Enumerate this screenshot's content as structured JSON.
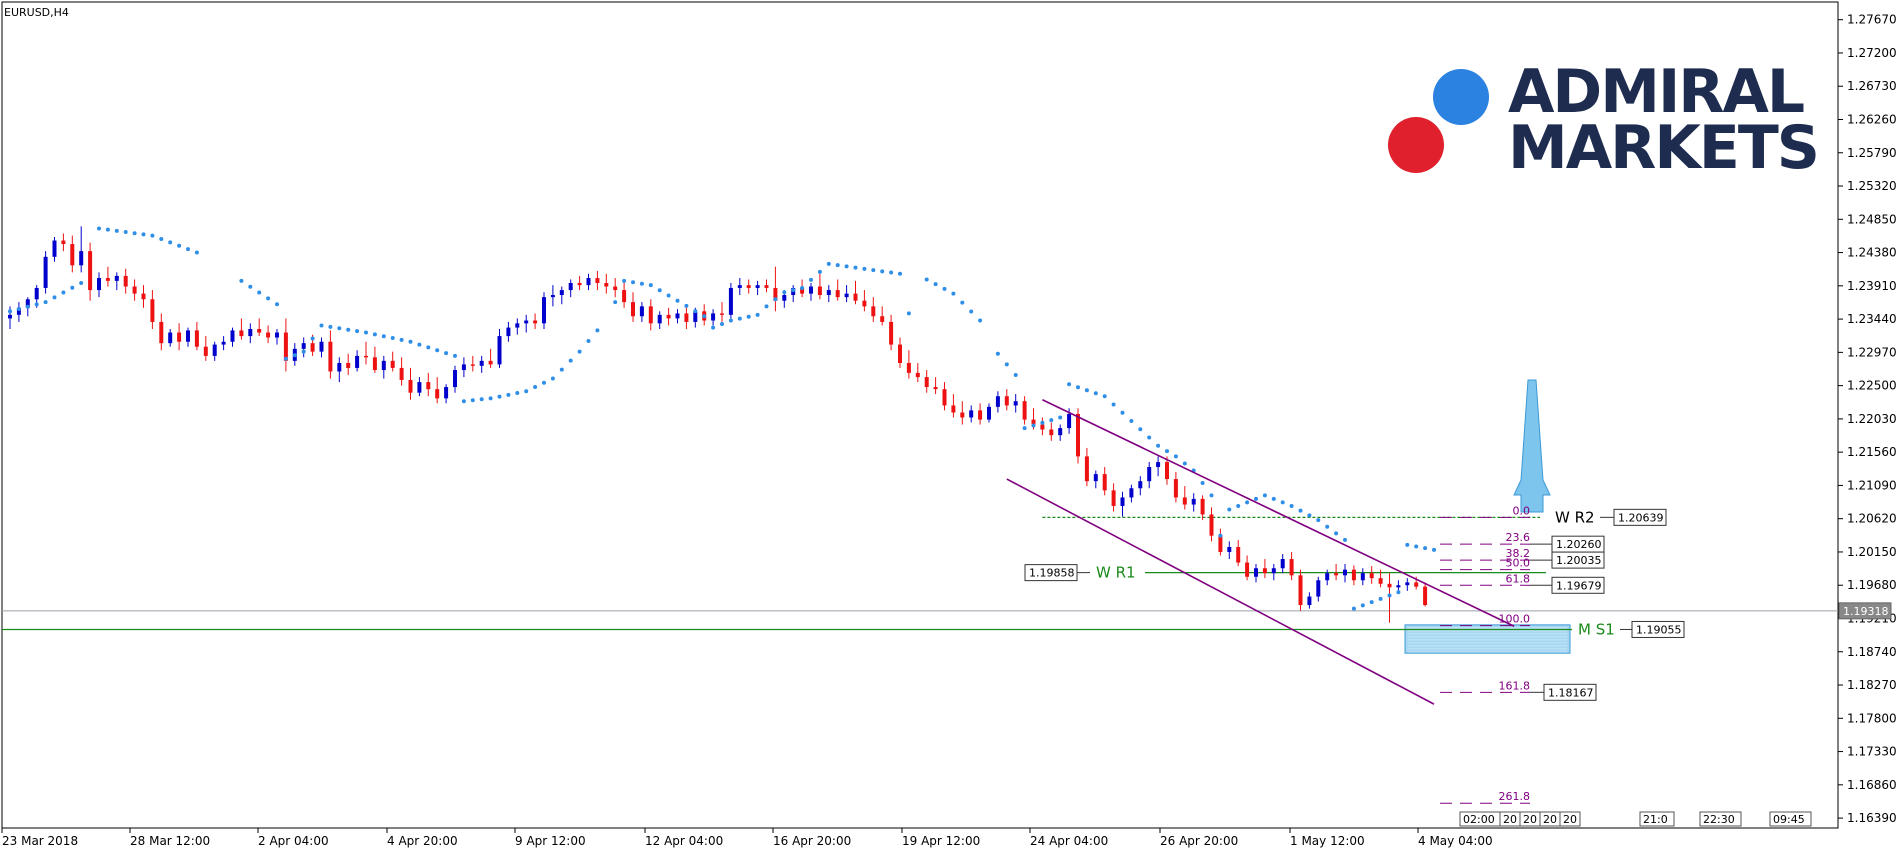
{
  "window": {
    "title": "EURUSD,H4"
  },
  "logo": {
    "line1": "ADMIRAL",
    "line2": "MARKETS"
  },
  "colors": {
    "bull": "#0000cc",
    "bear": "#ee1111",
    "sar": "#2f8fe8",
    "channel": "#800080",
    "pivot": "#1a8a1a",
    "fib": "#800080",
    "price_line": "#9aa0a6",
    "target_box": "#5eb6e8"
  },
  "chart_data": {
    "type": "candlestick",
    "symbol": "EURUSD",
    "timeframe": "H4",
    "ylim": [
      1.1625,
      1.2792
    ],
    "y_ticks": [
      "1.27670",
      "1.27200",
      "1.26730",
      "1.26260",
      "1.25790",
      "1.25320",
      "1.24850",
      "1.24380",
      "1.23910",
      "1.23440",
      "1.22970",
      "1.22500",
      "1.22030",
      "1.21560",
      "1.21090",
      "1.20620",
      "1.20150",
      "1.19680",
      "1.19210",
      "1.18740",
      "1.18270",
      "1.17800",
      "1.17330",
      "1.16860",
      "1.16390"
    ],
    "x_ticks": [
      "23 Mar 2018",
      "28 Mar 12:00",
      "2 Apr 04:00",
      "4 Apr 20:00",
      "9 Apr 12:00",
      "12 Apr 04:00",
      "16 Apr 20:00",
      "19 Apr 12:00",
      "24 Apr 04:00",
      "26 Apr 20:00",
      "1 May 12:00",
      "4 May 04:00"
    ],
    "current_price": "1.19318",
    "candles": [
      [
        1.2345,
        1.2362,
        1.233,
        1.235
      ],
      [
        1.235,
        1.2368,
        1.234,
        1.236
      ],
      [
        1.236,
        1.2375,
        1.2348,
        1.2372
      ],
      [
        1.2372,
        1.2392,
        1.236,
        1.2388
      ],
      [
        1.2388,
        1.244,
        1.238,
        1.2432
      ],
      [
        1.2432,
        1.246,
        1.2425,
        1.2455
      ],
      [
        1.2455,
        1.2465,
        1.244,
        1.245
      ],
      [
        1.245,
        1.2462,
        1.241,
        1.242
      ],
      [
        1.242,
        1.2475,
        1.241,
        1.244
      ],
      [
        1.244,
        1.2452,
        1.237,
        1.2385
      ],
      [
        1.2385,
        1.241,
        1.2375,
        1.2402
      ],
      [
        1.2402,
        1.2418,
        1.239,
        1.2398
      ],
      [
        1.2398,
        1.241,
        1.2385,
        1.2405
      ],
      [
        1.2405,
        1.2415,
        1.238,
        1.239
      ],
      [
        1.239,
        1.24,
        1.237,
        1.238
      ],
      [
        1.238,
        1.2392,
        1.236,
        1.2372
      ],
      [
        1.2372,
        1.2385,
        1.233,
        1.234
      ],
      [
        1.234,
        1.2352,
        1.23,
        1.231
      ],
      [
        1.231,
        1.233,
        1.2305,
        1.2325
      ],
      [
        1.2325,
        1.2338,
        1.23,
        1.2312
      ],
      [
        1.2312,
        1.2332,
        1.2305,
        1.2328
      ],
      [
        1.2328,
        1.234,
        1.23,
        1.2305
      ],
      [
        1.2305,
        1.232,
        1.2285,
        1.2292
      ],
      [
        1.2292,
        1.2312,
        1.2285,
        1.2308
      ],
      [
        1.2308,
        1.232,
        1.23,
        1.2312
      ],
      [
        1.2312,
        1.2332,
        1.2305,
        1.2328
      ],
      [
        1.2328,
        1.2345,
        1.2315,
        1.232
      ],
      [
        1.232,
        1.2338,
        1.231,
        1.233
      ],
      [
        1.233,
        1.2345,
        1.232,
        1.2325
      ],
      [
        1.2325,
        1.2335,
        1.231,
        1.2318
      ],
      [
        1.2318,
        1.233,
        1.2308,
        1.2325
      ],
      [
        1.2325,
        1.2345,
        1.227,
        1.2285
      ],
      [
        1.2285,
        1.231,
        1.2278,
        1.2302
      ],
      [
        1.2302,
        1.2318,
        1.229,
        1.231
      ],
      [
        1.231,
        1.2322,
        1.2292,
        1.2298
      ],
      [
        1.2298,
        1.2318,
        1.229,
        1.2312
      ],
      [
        1.2312,
        1.2328,
        1.226,
        1.227
      ],
      [
        1.227,
        1.229,
        1.2255,
        1.2282
      ],
      [
        1.2282,
        1.2295,
        1.2265,
        1.2275
      ],
      [
        1.2275,
        1.23,
        1.227,
        1.2292
      ],
      [
        1.2292,
        1.2312,
        1.228,
        1.229
      ],
      [
        1.229,
        1.2305,
        1.2268,
        1.2272
      ],
      [
        1.2272,
        1.2292,
        1.226,
        1.2285
      ],
      [
        1.2285,
        1.2298,
        1.227,
        1.2275
      ],
      [
        1.2275,
        1.229,
        1.225,
        1.2258
      ],
      [
        1.2258,
        1.2275,
        1.223,
        1.224
      ],
      [
        1.224,
        1.2262,
        1.2235,
        1.2255
      ],
      [
        1.2255,
        1.2268,
        1.2235,
        1.2245
      ],
      [
        1.2245,
        1.2262,
        1.2225,
        1.2232
      ],
      [
        1.2232,
        1.2252,
        1.2225,
        1.2248
      ],
      [
        1.2248,
        1.2278,
        1.224,
        1.2272
      ],
      [
        1.2272,
        1.229,
        1.2262,
        1.228
      ],
      [
        1.228,
        1.2292,
        1.227,
        1.2278
      ],
      [
        1.2278,
        1.2292,
        1.2268,
        1.2285
      ],
      [
        1.2285,
        1.2302,
        1.2275,
        1.228
      ],
      [
        1.228,
        1.233,
        1.2275,
        1.232
      ],
      [
        1.232,
        1.234,
        1.2312,
        1.2332
      ],
      [
        1.2332,
        1.2345,
        1.2322,
        1.2338
      ],
      [
        1.2338,
        1.235,
        1.2325,
        1.2342
      ],
      [
        1.2342,
        1.2352,
        1.233,
        1.2338
      ],
      [
        1.2338,
        1.2382,
        1.233,
        1.2375
      ],
      [
        1.2375,
        1.2392,
        1.2362,
        1.2378
      ],
      [
        1.2378,
        1.239,
        1.2365,
        1.2385
      ],
      [
        1.2385,
        1.24,
        1.2375,
        1.2395
      ],
      [
        1.2395,
        1.2405,
        1.2385,
        1.2392
      ],
      [
        1.2392,
        1.2408,
        1.2385,
        1.2402
      ],
      [
        1.2402,
        1.2412,
        1.2385,
        1.2395
      ],
      [
        1.2395,
        1.2408,
        1.238,
        1.239
      ],
      [
        1.239,
        1.2402,
        1.2375,
        1.2385
      ],
      [
        1.2385,
        1.2398,
        1.236,
        1.2368
      ],
      [
        1.2368,
        1.2382,
        1.234,
        1.2348
      ],
      [
        1.2348,
        1.2368,
        1.234,
        1.2362
      ],
      [
        1.2362,
        1.2372,
        1.2328,
        1.2338
      ],
      [
        1.2338,
        1.2355,
        1.233,
        1.235
      ],
      [
        1.235,
        1.236,
        1.2335,
        1.2345
      ],
      [
        1.2345,
        1.2358,
        1.2338,
        1.2352
      ],
      [
        1.2352,
        1.2362,
        1.233,
        1.234
      ],
      [
        1.234,
        1.236,
        1.2332,
        1.2355
      ],
      [
        1.2355,
        1.2365,
        1.2335,
        1.2342
      ],
      [
        1.2342,
        1.2358,
        1.2335,
        1.2352
      ],
      [
        1.2352,
        1.2368,
        1.234,
        1.235
      ],
      [
        1.235,
        1.2395,
        1.2345,
        1.2388
      ],
      [
        1.2388,
        1.2402,
        1.2378,
        1.2392
      ],
      [
        1.2392,
        1.24,
        1.238,
        1.2388
      ],
      [
        1.2388,
        1.2398,
        1.2378,
        1.2392
      ],
      [
        1.2392,
        1.24,
        1.2382,
        1.2388
      ],
      [
        1.2388,
        1.2418,
        1.2355,
        1.237
      ],
      [
        1.237,
        1.2385,
        1.236,
        1.2378
      ],
      [
        1.2378,
        1.2392,
        1.2368,
        1.2388
      ],
      [
        1.2388,
        1.24,
        1.2375,
        1.238
      ],
      [
        1.238,
        1.2395,
        1.237,
        1.239
      ],
      [
        1.239,
        1.2408,
        1.2372,
        1.2378
      ],
      [
        1.2378,
        1.2392,
        1.2368,
        1.2385
      ],
      [
        1.2385,
        1.24,
        1.237,
        1.2375
      ],
      [
        1.2375,
        1.2392,
        1.2368,
        1.238
      ],
      [
        1.238,
        1.2398,
        1.2365,
        1.237
      ],
      [
        1.237,
        1.2385,
        1.2355,
        1.2362
      ],
      [
        1.2362,
        1.2375,
        1.234,
        1.2348
      ],
      [
        1.2348,
        1.2362,
        1.2335,
        1.234
      ],
      [
        1.234,
        1.235,
        1.23,
        1.2308
      ],
      [
        1.2308,
        1.2318,
        1.2275,
        1.2282
      ],
      [
        1.2282,
        1.23,
        1.226,
        1.2268
      ],
      [
        1.2268,
        1.2282,
        1.2255,
        1.2262
      ],
      [
        1.2262,
        1.2272,
        1.224,
        1.2248
      ],
      [
        1.2248,
        1.2262,
        1.2238,
        1.2245
      ],
      [
        1.2245,
        1.2255,
        1.2215,
        1.2222
      ],
      [
        1.2222,
        1.2238,
        1.2205,
        1.2212
      ],
      [
        1.2212,
        1.2228,
        1.2195,
        1.2205
      ],
      [
        1.2205,
        1.2222,
        1.2198,
        1.2215
      ],
      [
        1.2215,
        1.2225,
        1.2195,
        1.2202
      ],
      [
        1.2202,
        1.2225,
        1.2198,
        1.222
      ],
      [
        1.222,
        1.2242,
        1.2212,
        1.2235
      ],
      [
        1.2235,
        1.2245,
        1.2215,
        1.2222
      ],
      [
        1.2222,
        1.2238,
        1.2212,
        1.2228
      ],
      [
        1.2228,
        1.2235,
        1.2195,
        1.2202
      ],
      [
        1.2202,
        1.2218,
        1.2188,
        1.2195
      ],
      [
        1.2195,
        1.2205,
        1.218,
        1.2188
      ],
      [
        1.2188,
        1.2198,
        1.2172,
        1.218
      ],
      [
        1.218,
        1.2195,
        1.2172,
        1.219
      ],
      [
        1.219,
        1.2218,
        1.2182,
        1.221
      ],
      [
        1.221,
        1.2218,
        1.214,
        1.215
      ],
      [
        1.215,
        1.2162,
        1.2108,
        1.2115
      ],
      [
        1.2115,
        1.213,
        1.2105,
        1.2125
      ],
      [
        1.2125,
        1.2135,
        1.2095,
        1.2102
      ],
      [
        1.2102,
        1.2112,
        1.2072,
        1.208
      ],
      [
        1.208,
        1.21,
        1.2065,
        1.2092
      ],
      [
        1.2092,
        1.211,
        1.2085,
        1.2105
      ],
      [
        1.2105,
        1.2122,
        1.2095,
        1.2115
      ],
      [
        1.2115,
        1.2142,
        1.2105,
        1.2135
      ],
      [
        1.2135,
        1.215,
        1.2122,
        1.2142
      ],
      [
        1.2142,
        1.215,
        1.211,
        1.2118
      ],
      [
        1.2118,
        1.2128,
        1.2085,
        1.2092
      ],
      [
        1.2092,
        1.2108,
        1.2075,
        1.2082
      ],
      [
        1.2082,
        1.2098,
        1.2072,
        1.209
      ],
      [
        1.209,
        1.2095,
        1.206,
        1.2068
      ],
      [
        1.2068,
        1.2078,
        1.203,
        1.2038
      ],
      [
        1.2038,
        1.2048,
        1.201,
        1.2015
      ],
      [
        1.2015,
        1.203,
        1.2005,
        1.2022
      ],
      [
        1.2022,
        1.2032,
        1.1995,
        1.2
      ],
      [
        1.2,
        1.201,
        1.1975,
        1.198
      ],
      [
        1.198,
        1.1998,
        1.1972,
        1.1992
      ],
      [
        1.1992,
        1.2005,
        1.1978,
        1.1985
      ],
      [
        1.1985,
        1.1998,
        1.1975,
        1.1992
      ],
      [
        1.1992,
        1.2012,
        1.1985,
        1.2005
      ],
      [
        1.2005,
        1.2015,
        1.1975,
        1.1982
      ],
      [
        1.1982,
        1.199,
        1.1932,
        1.194
      ],
      [
        1.194,
        1.1958,
        1.1935,
        1.1952
      ],
      [
        1.1952,
        1.198,
        1.1945,
        1.1975
      ],
      [
        1.1975,
        1.199,
        1.1968,
        1.1985
      ],
      [
        1.1985,
        1.1998,
        1.1975,
        1.1982
      ],
      [
        1.1982,
        1.1998,
        1.1972,
        1.199
      ],
      [
        1.199,
        1.1996,
        1.1968,
        1.1975
      ],
      [
        1.1975,
        1.1992,
        1.1968,
        1.1985
      ],
      [
        1.1985,
        1.1995,
        1.197,
        1.1978
      ],
      [
        1.1978,
        1.199,
        1.1965,
        1.197
      ],
      [
        1.197,
        1.1985,
        1.1915,
        1.1965
      ],
      [
        1.1965,
        1.1975,
        1.1958,
        1.1968
      ],
      [
        1.1968,
        1.1978,
        1.196,
        1.1972
      ],
      [
        1.1972,
        1.198,
        1.1962,
        1.1966
      ],
      [
        1.1966,
        1.1972,
        1.1938,
        1.194
      ]
    ],
    "parabolic_sar": [
      [
        0,
        1.2355
      ],
      [
        4,
        1.2368
      ],
      [
        8,
        1.2395
      ],
      [
        10,
        1.2472
      ],
      [
        16,
        1.2462
      ],
      [
        21,
        1.2438
      ],
      [
        26,
        1.2398
      ],
      [
        30,
        1.2365
      ],
      [
        31,
        1.2288
      ],
      [
        33,
        1.2298
      ],
      [
        35,
        1.2335
      ],
      [
        40,
        1.2325
      ],
      [
        45,
        1.2312
      ],
      [
        50,
        1.2292
      ],
      [
        51,
        1.2228
      ],
      [
        54,
        1.2232
      ],
      [
        58,
        1.2242
      ],
      [
        61,
        1.226
      ],
      [
        64,
        1.2298
      ],
      [
        66,
        1.2328
      ],
      [
        68,
        1.2368
      ],
      [
        69,
        1.2398
      ],
      [
        72,
        1.2392
      ],
      [
        75,
        1.237
      ],
      [
        78,
        1.2348
      ],
      [
        79,
        1.2332
      ],
      [
        81,
        1.2342
      ],
      [
        84,
        1.235
      ],
      [
        85,
        1.2362
      ],
      [
        87,
        1.2382
      ],
      [
        89,
        1.2388
      ],
      [
        92,
        1.2422
      ],
      [
        96,
        1.2415
      ],
      [
        100,
        1.2408
      ],
      [
        101,
        1.2352
      ],
      [
        103,
        1.24
      ],
      [
        106,
        1.238
      ],
      [
        109,
        1.2342
      ],
      [
        111,
        1.2295
      ],
      [
        113,
        1.2265
      ],
      [
        114,
        1.219
      ],
      [
        118,
        1.2205
      ],
      [
        119,
        1.2252
      ],
      [
        123,
        1.2235
      ],
      [
        126,
        1.22
      ],
      [
        129,
        1.2165
      ],
      [
        131,
        1.215
      ],
      [
        133,
        1.213
      ],
      [
        135,
        1.2095
      ],
      [
        136,
        1.2038
      ],
      [
        137,
        1.2075
      ],
      [
        141,
        1.2095
      ],
      [
        144,
        1.208
      ],
      [
        147,
        1.206
      ],
      [
        150,
        1.2032
      ],
      [
        151,
        1.1935
      ],
      [
        156,
        1.1958
      ],
      [
        157,
        1.2025
      ],
      [
        160,
        1.2018
      ]
    ],
    "channel_lines": [
      {
        "from": [
          116,
          1.223
        ],
        "to": [
          169,
          1.191
        ]
      },
      {
        "from": [
          112,
          1.2118
        ],
        "to": [
          160,
          1.18
        ]
      }
    ],
    "pivots": [
      {
        "label": "W R2",
        "value": "1.20639",
        "price": 1.20639,
        "style": "dashed",
        "from": 116
      },
      {
        "label": "W R1",
        "value": "1.19858",
        "price": 1.19858,
        "style": "solid",
        "from": 117
      },
      {
        "label": "M S1",
        "value": "1.19055",
        "price": 1.19055,
        "style": "solid",
        "from": 0
      }
    ],
    "fibonacci": [
      {
        "level": "0.0",
        "price": 1.20639
      },
      {
        "level": "23.6",
        "price": 1.2026,
        "value": "1.20260"
      },
      {
        "level": "38.2",
        "price": 1.20035,
        "value": "1.20035"
      },
      {
        "level": "50.0",
        "price": 1.199
      },
      {
        "level": "61.8",
        "price": 1.19679,
        "value": "1.19679"
      },
      {
        "level": "100.0",
        "price": 1.1911
      },
      {
        "level": "161.8",
        "price": 1.18167,
        "value": "1.18167"
      },
      {
        "level": "261.8",
        "price": 1.166
      }
    ],
    "target_box": {
      "price_from": 1.1872,
      "price_to": 1.1912
    },
    "time_scale_labels": [
      "02:00",
      "20",
      "20",
      "20",
      "20",
      "21:0",
      "22:30",
      "09:45"
    ]
  }
}
